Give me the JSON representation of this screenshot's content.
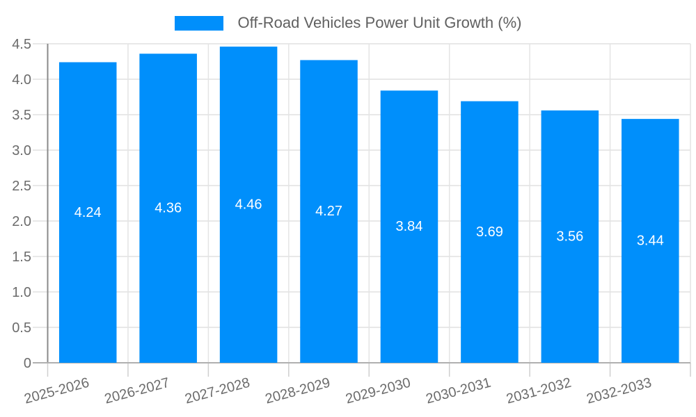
{
  "legend": {
    "series_label": "Off-Road Vehicles Power Unit Growth (%)"
  },
  "chart_data": {
    "type": "bar",
    "title": "Off-Road Vehicles Power Unit Growth (%)",
    "categories": [
      "2025-2026",
      "2026-2027",
      "2027-2028",
      "2028-2029",
      "2029-2030",
      "2030-2031",
      "2031-2032",
      "2032-2033"
    ],
    "series": [
      {
        "name": "Off-Road Vehicles Power Unit Growth (%)",
        "values": [
          4.24,
          4.36,
          4.46,
          4.27,
          3.84,
          3.69,
          3.56,
          3.44
        ]
      }
    ],
    "value_labels": [
      "4.24",
      "4.36",
      "4.46",
      "4.27",
      "3.84",
      "3.69",
      "3.56",
      "3.44"
    ],
    "xlabel": "",
    "ylabel": "",
    "ylim": [
      0,
      4.5
    ],
    "ytick_step": 0.5,
    "ytick_labels": [
      "0",
      "0.5",
      "1.0",
      "1.5",
      "2.0",
      "2.5",
      "3.0",
      "3.5",
      "4.0",
      "4.5"
    ],
    "grid": true,
    "legend_position": "top-center",
    "x_tick_label_rotation_deg": -15,
    "colors": {
      "bar": "#008ffb",
      "value_label": "#ffffff",
      "axis_label": "#6b6b6b",
      "legend_text": "#606060",
      "grid_line": "#e4e4e4",
      "tick_line": "#cfcfcf",
      "y_axis_line": "#8a8a8a",
      "x_axis_line": "#b0b0b0",
      "background": "#ffffff"
    }
  }
}
